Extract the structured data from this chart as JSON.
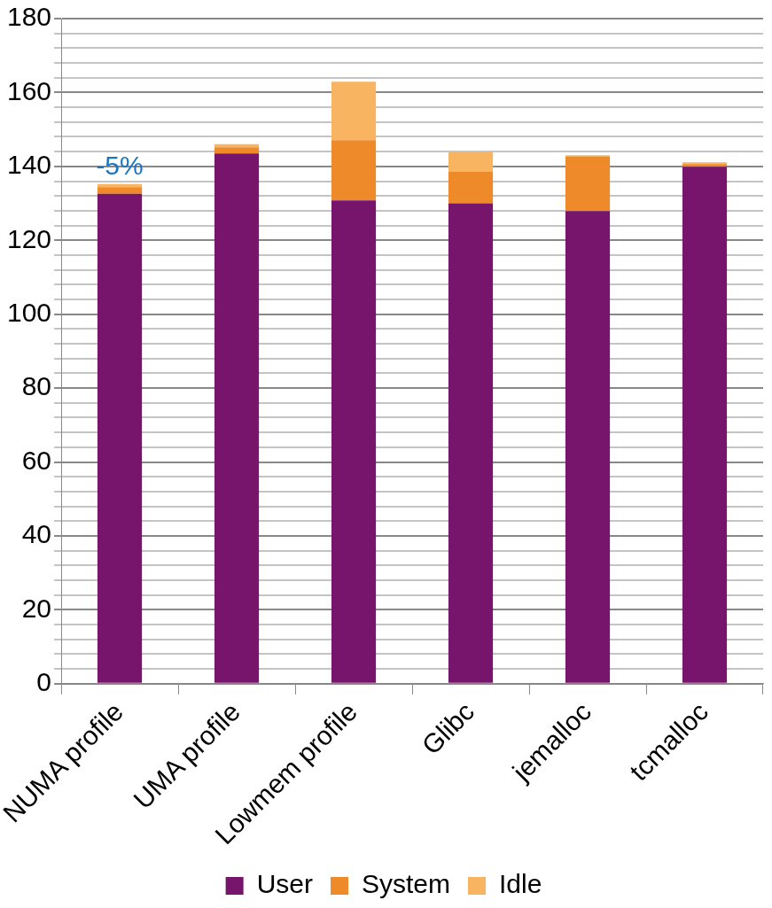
{
  "chart_data": {
    "type": "bar",
    "stacked": true,
    "categories": [
      "NUMA profile",
      "UMA profile",
      "Lowmem profile",
      "Glibc",
      "jemalloc",
      "tcmalloc"
    ],
    "series": [
      {
        "name": "User",
        "color": "#76156b",
        "values": [
          132.6,
          143.5,
          130.8,
          130,
          127.9,
          139.9
        ]
      },
      {
        "name": "System",
        "color": "#ef8a2b",
        "values": [
          1.8,
          1.7,
          16.3,
          8.5,
          14.7,
          0.7
        ]
      },
      {
        "name": "Idle",
        "color": "#f9b462",
        "values": [
          0.8,
          0.8,
          15.8,
          5.3,
          0.4,
          0.5
        ]
      }
    ],
    "ylim": [
      0,
      180
    ],
    "yticks": [
      0,
      {
        "value": 4,
        "label": null
      },
      {
        "value": 8,
        "label": null
      },
      {
        "value": 12,
        "label": null
      },
      {
        "value": 16,
        "label": null
      },
      20,
      {
        "value": 24,
        "label": null
      },
      {
        "value": 28,
        "label": null
      },
      {
        "value": 32,
        "label": null
      },
      {
        "value": 36,
        "label": null
      },
      40,
      {
        "value": 44,
        "label": null
      },
      {
        "value": 48,
        "label": null
      },
      {
        "value": 52,
        "label": null
      },
      {
        "value": 56,
        "label": null
      },
      60,
      {
        "value": 64,
        "label": null
      },
      {
        "value": 68,
        "label": null
      },
      {
        "value": 72,
        "label": null
      },
      {
        "value": 76,
        "label": null
      },
      80,
      {
        "value": 84,
        "label": null
      },
      {
        "value": 88,
        "label": null
      },
      {
        "value": 92,
        "label": null
      },
      {
        "value": 96,
        "label": null
      },
      100,
      {
        "value": 104,
        "label": null
      },
      {
        "value": 108,
        "label": null
      },
      {
        "value": 112,
        "label": null
      },
      {
        "value": 116,
        "label": null
      },
      120,
      {
        "value": 124,
        "label": null
      },
      {
        "value": 128,
        "label": null
      },
      {
        "value": 132,
        "label": null
      },
      {
        "value": 136,
        "label": null
      },
      140,
      {
        "value": 144,
        "label": null
      },
      {
        "value": 148,
        "label": null
      },
      {
        "value": 152,
        "label": null
      },
      {
        "value": 156,
        "label": null
      },
      160,
      {
        "value": 164,
        "label": null
      },
      {
        "value": 168,
        "label": null
      },
      {
        "value": 172,
        "label": null
      },
      {
        "value": 176,
        "label": null
      },
      180
    ],
    "grid": "y",
    "legend": "bottom",
    "annotations": [
      {
        "text": "-5%",
        "x": "NUMA profile",
        "y": 135.2
      }
    ]
  }
}
